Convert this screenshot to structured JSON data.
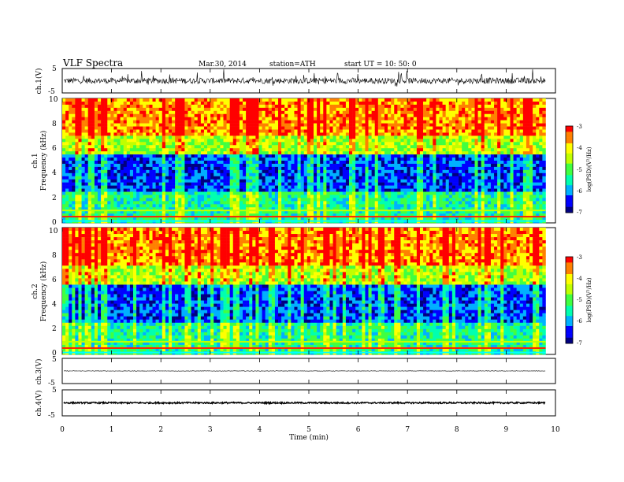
{
  "header": {
    "title": "VLF  Spectra",
    "date": "Mar.30, 2014",
    "station": "station=ATH",
    "start": "start  UT  =   10: 50: 0"
  },
  "colors": {
    "wave": "#000000",
    "spec_scale": [
      "#000080",
      "#0000ff",
      "#00b0ff",
      "#00ffb0",
      "#40ff40",
      "#c0ff00",
      "#ffff00",
      "#ff8000",
      "#ff0000"
    ]
  },
  "chart_data": [
    {
      "type": "line",
      "name": "ch1-waveform",
      "ylabel": "ch.1(V)",
      "ylim": [
        -5,
        5
      ],
      "yticks": [
        "5",
        "-5"
      ],
      "description_values": {
        "baseline": 0.0,
        "noise_amplitude": 1.2
      }
    },
    {
      "type": "heatmap",
      "name": "ch1-spectrogram",
      "ylabel": "Frequency  (kHz)",
      "channel": "ch.1",
      "ylim": [
        0,
        10
      ],
      "yticks": [
        "0",
        "2",
        "4",
        "6",
        "8",
        "10"
      ],
      "colorbar": {
        "label": "log(PSD)(V²/Hz)",
        "range": [
          -7,
          -3
        ],
        "ticks": [
          "-3",
          "-4",
          "-5",
          "-6",
          "-7"
        ]
      }
    },
    {
      "type": "heatmap",
      "name": "ch2-spectrogram",
      "ylabel": "Frequency  (kHz)",
      "channel": "ch.2",
      "ylim": [
        0,
        10
      ],
      "yticks": [
        "0",
        "2",
        "4",
        "6",
        "8",
        "10"
      ],
      "colorbar": {
        "label": "log(PSD)(V²/Hz)",
        "range": [
          -7,
          -3
        ],
        "ticks": [
          "-3",
          "-4",
          "-5",
          "-6",
          "-7"
        ]
      }
    },
    {
      "type": "line",
      "name": "ch3-waveform",
      "ylabel": "ch.3(V)",
      "ylim": [
        -5,
        5
      ],
      "yticks": [
        "5",
        "-5"
      ],
      "description_values": {
        "baseline": 0.0,
        "noise_amplitude": 0.1
      }
    },
    {
      "type": "line",
      "name": "ch4-waveform",
      "ylabel": "ch.4(V)",
      "ylim": [
        -5,
        5
      ],
      "yticks": [
        "5",
        "-5"
      ],
      "description_values": {
        "baseline": 0.0,
        "noise_amplitude": 0.3
      }
    },
    {
      "type": "axis",
      "name": "time-axis",
      "xlabel": "Time  (min)",
      "xlim": [
        0,
        10
      ],
      "xticks": [
        "0",
        "1",
        "2",
        "3",
        "4",
        "5",
        "6",
        "7",
        "8",
        "9",
        "10"
      ],
      "data_end": 9.8
    }
  ]
}
